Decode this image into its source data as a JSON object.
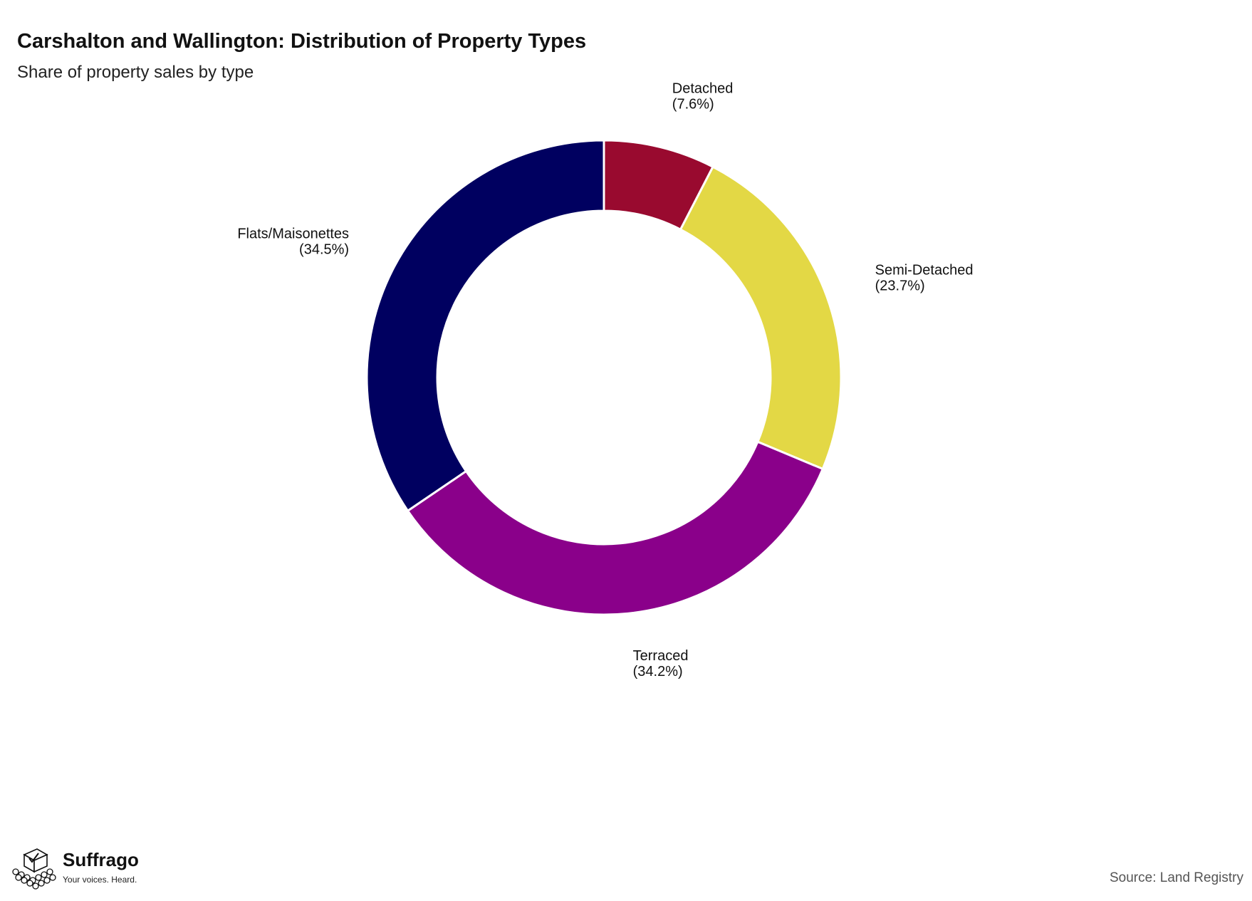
{
  "header": {
    "title": "Carshalton and Wallington: Distribution of Property Types",
    "subtitle": "Share of property sales by type"
  },
  "footer": {
    "source": "Source: Land Registry",
    "logo_name": "Suffrago",
    "logo_tagline": "Your voices. Heard."
  },
  "chart_data": {
    "type": "pie",
    "variant": "donut",
    "title": "Carshalton and Wallington: Distribution of Property Types",
    "subtitle": "Share of property sales by type",
    "slices": [
      {
        "label": "Detached",
        "percent_label": "(7.6%)",
        "value": 7.6,
        "color": "#990A2F"
      },
      {
        "label": "Semi-Detached",
        "percent_label": "(23.7%)",
        "value": 23.7,
        "color": "#E3D845"
      },
      {
        "label": "Terraced",
        "percent_label": "(34.2%)",
        "value": 34.2,
        "color": "#8A008A"
      },
      {
        "label": "Flats/Maisonettes",
        "percent_label": "(34.5%)",
        "value": 34.5,
        "color": "#000060"
      }
    ],
    "legend": "none",
    "start": "top",
    "direction": "clockwise"
  }
}
